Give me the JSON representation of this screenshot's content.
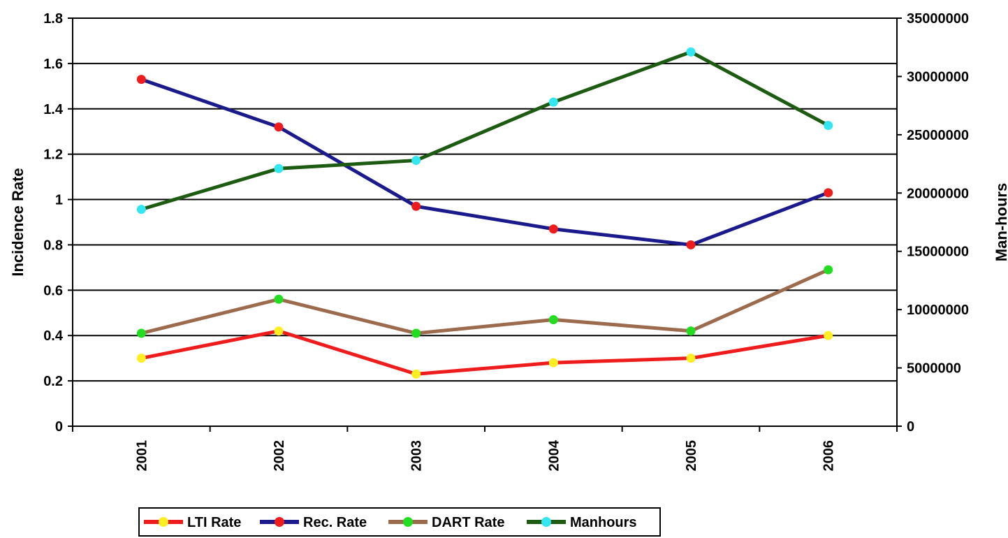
{
  "chart_data": {
    "type": "line",
    "categories": [
      "2001",
      "2002",
      "2003",
      "2004",
      "2005",
      "2006"
    ],
    "ylabel": "Incidence Rate",
    "y2label": "Man-hours",
    "ylim": [
      0,
      1.8
    ],
    "yticks": [
      "0",
      "0.2",
      "0.4",
      "0.6",
      "0.8",
      "1",
      "1.2",
      "1.4",
      "1.6",
      "1.8"
    ],
    "y2lim": [
      0,
      35000000
    ],
    "y2ticks": [
      "0",
      "5000000",
      "10000000",
      "15000000",
      "20000000",
      "25000000",
      "30000000",
      "35000000"
    ],
    "grid": true,
    "legend_position": "bottom",
    "series": [
      {
        "name": "LTI Rate",
        "axis": "left",
        "values": [
          0.3,
          0.42,
          0.23,
          0.28,
          0.3,
          0.4
        ],
        "line_color": "#ee1c1c",
        "marker_color": "#ffee22"
      },
      {
        "name": "Rec. Rate",
        "axis": "left",
        "values": [
          1.53,
          1.32,
          0.97,
          0.87,
          0.8,
          1.03
        ],
        "line_color": "#1a1a8c",
        "marker_color": "#ee1c1c"
      },
      {
        "name": "DART Rate",
        "axis": "left",
        "values": [
          0.41,
          0.56,
          0.41,
          0.47,
          0.42,
          0.69
        ],
        "line_color": "#9c6b4e",
        "marker_color": "#22dd22"
      },
      {
        "name": "Manhours",
        "axis": "right",
        "values": [
          18600000,
          22100000,
          22800000,
          27800000,
          32100000,
          25800000
        ],
        "line_color": "#1e5b12",
        "marker_color": "#33e6f0"
      }
    ]
  }
}
